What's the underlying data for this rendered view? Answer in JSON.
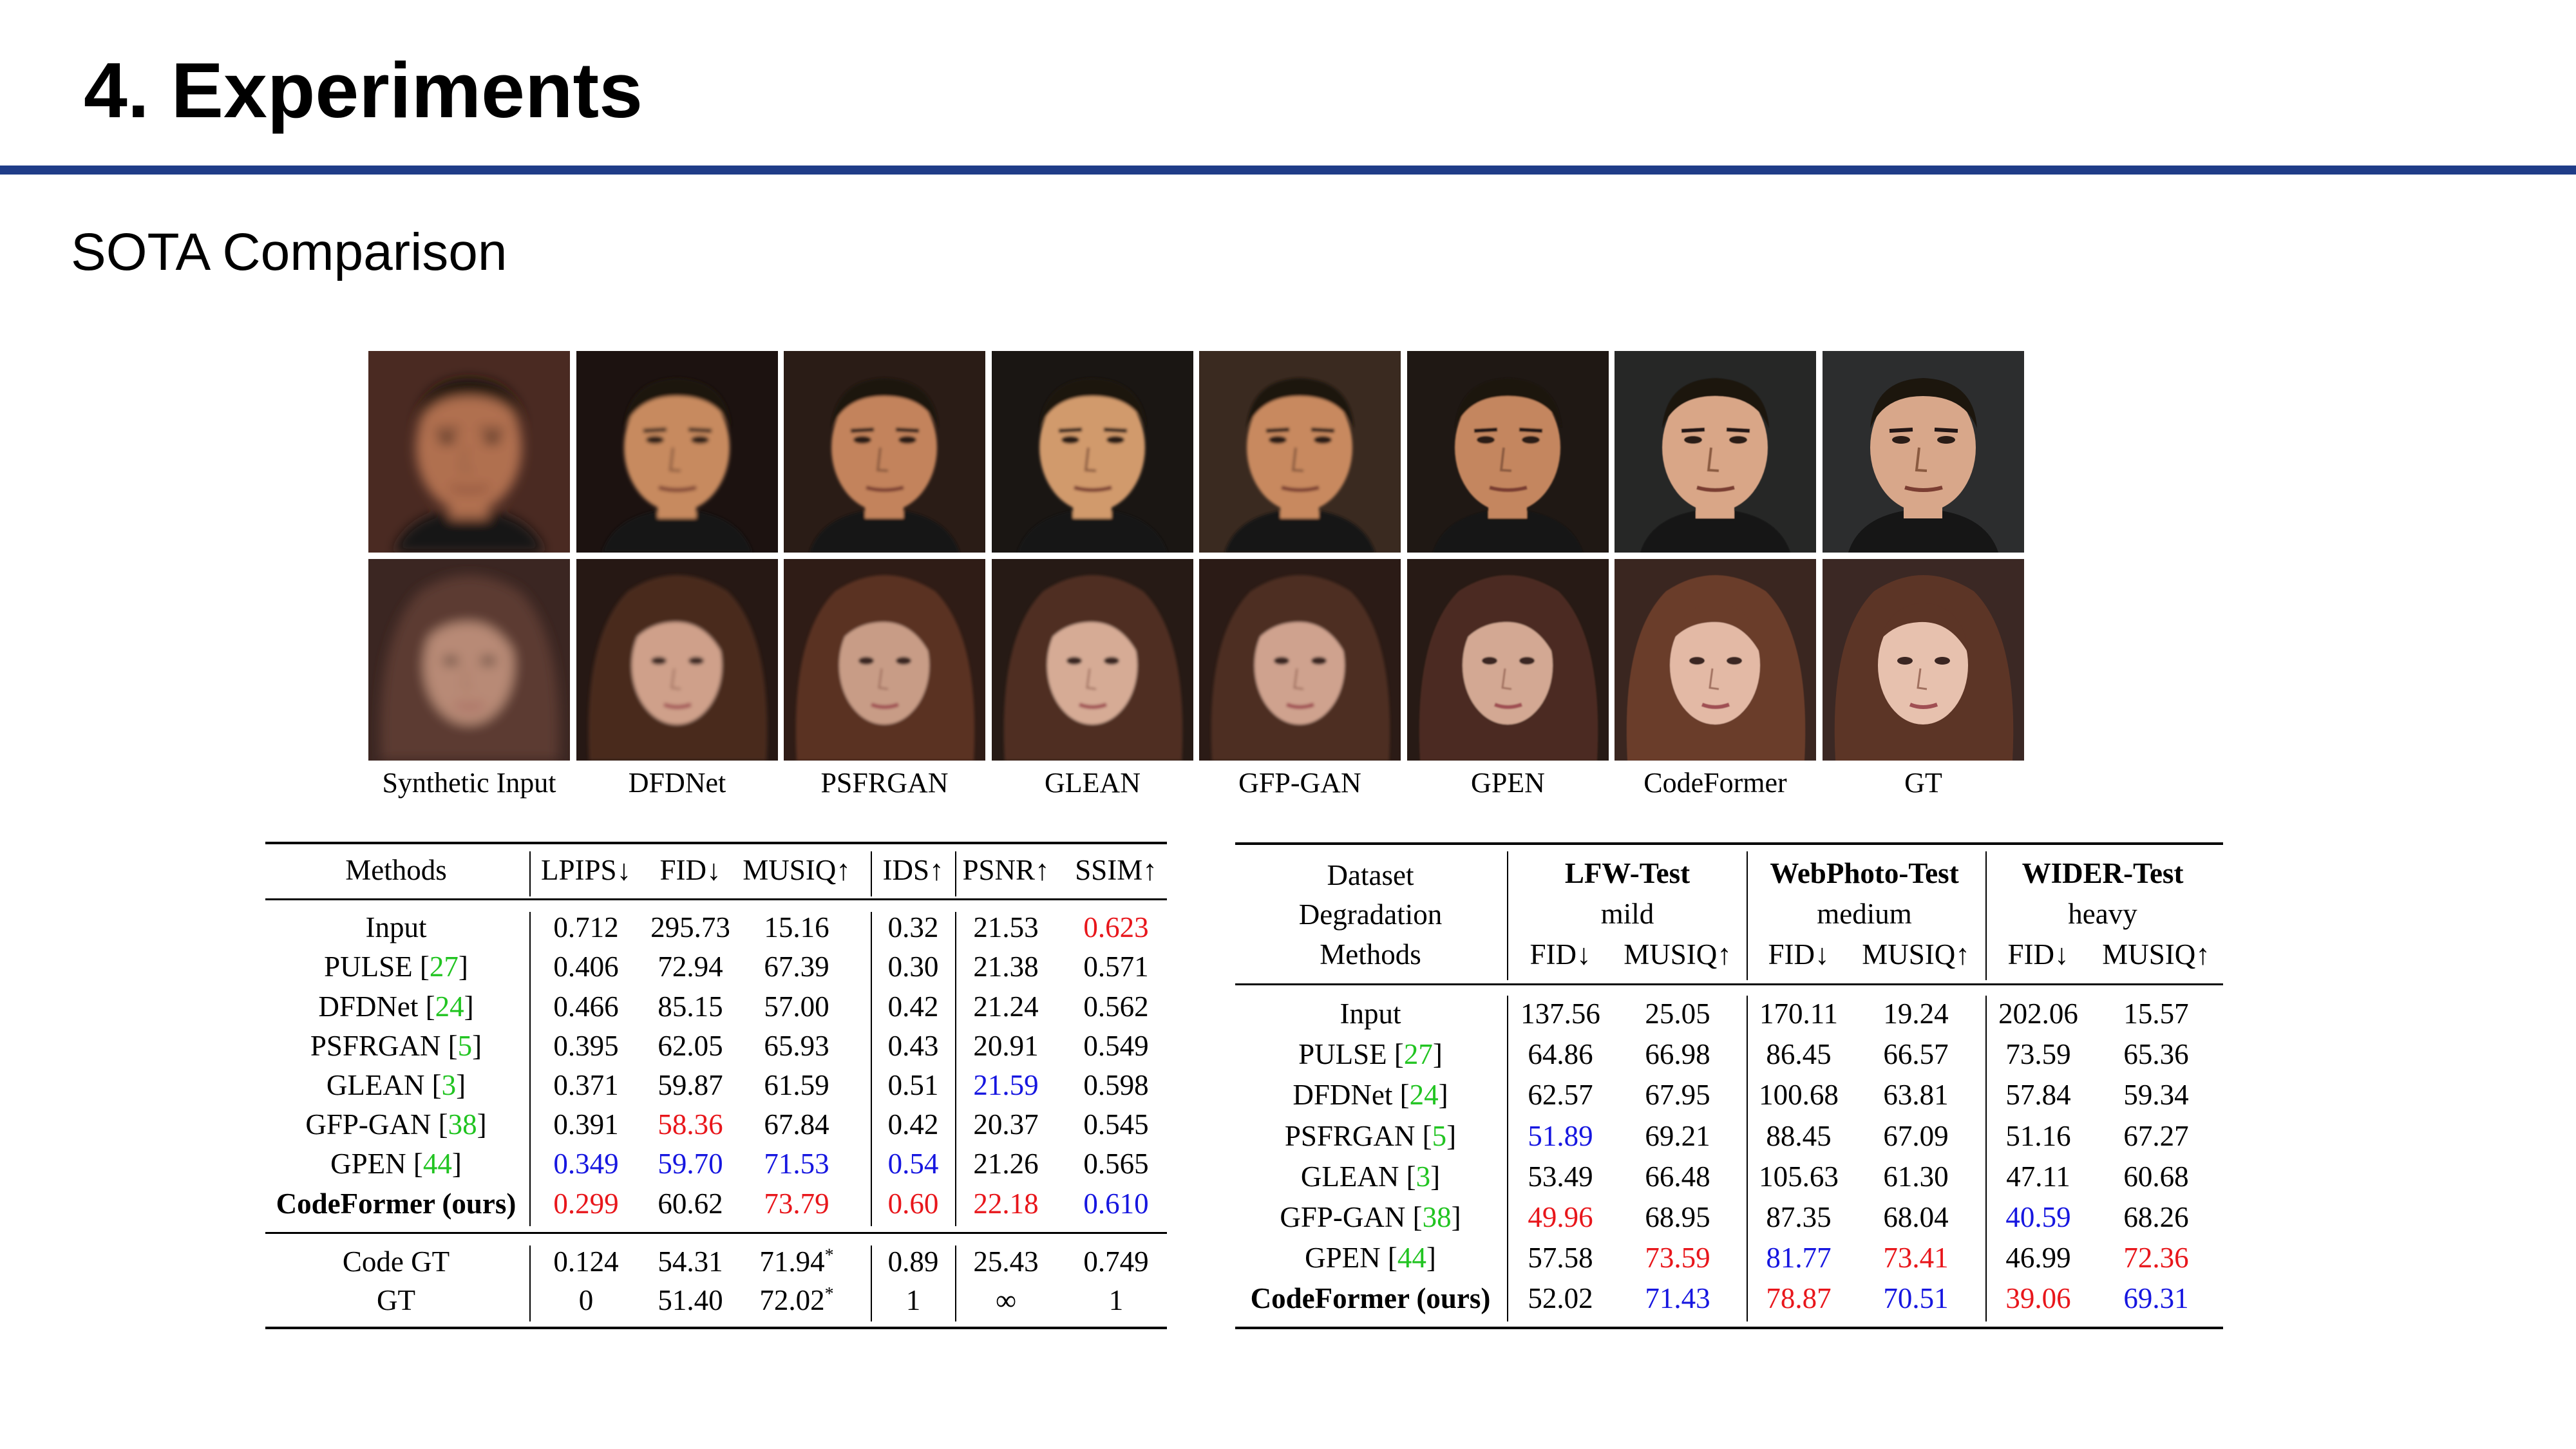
{
  "slide": {
    "title": "4. Experiments",
    "subtitle": "SOTA Comparison"
  },
  "figure": {
    "captions": [
      "Synthetic Input",
      "DFDNet",
      "PSFRGAN",
      "GLEAN",
      "GFP-GAN",
      "GPEN",
      "CodeFormer",
      "GT"
    ],
    "rows": [
      "male-face",
      "female-face"
    ]
  },
  "table1": {
    "headers": [
      "Methods",
      "LPIPS↓",
      "FID↓",
      "MUSIQ↑",
      "IDS↑",
      "PSNR↑",
      "SSIM↑"
    ],
    "rows": [
      {
        "name": "Input",
        "ref": "",
        "bold": false,
        "cells": [
          [
            "0.712",
            ""
          ],
          [
            "295.73",
            ""
          ],
          [
            "15.16",
            ""
          ],
          [
            "0.32",
            ""
          ],
          [
            "21.53",
            ""
          ],
          [
            "0.623",
            "red"
          ]
        ]
      },
      {
        "name": "PULSE ",
        "ref": "27",
        "bold": false,
        "cells": [
          [
            "0.406",
            ""
          ],
          [
            "72.94",
            ""
          ],
          [
            "67.39",
            ""
          ],
          [
            "0.30",
            ""
          ],
          [
            "21.38",
            ""
          ],
          [
            "0.571",
            ""
          ]
        ]
      },
      {
        "name": "DFDNet ",
        "ref": "24",
        "bold": false,
        "cells": [
          [
            "0.466",
            ""
          ],
          [
            "85.15",
            ""
          ],
          [
            "57.00",
            ""
          ],
          [
            "0.42",
            ""
          ],
          [
            "21.24",
            ""
          ],
          [
            "0.562",
            ""
          ]
        ]
      },
      {
        "name": "PSFRGAN ",
        "ref": "5",
        "bold": false,
        "cells": [
          [
            "0.395",
            ""
          ],
          [
            "62.05",
            ""
          ],
          [
            "65.93",
            ""
          ],
          [
            "0.43",
            ""
          ],
          [
            "20.91",
            ""
          ],
          [
            "0.549",
            ""
          ]
        ]
      },
      {
        "name": "GLEAN ",
        "ref": "3",
        "bold": false,
        "cells": [
          [
            "0.371",
            ""
          ],
          [
            "59.87",
            ""
          ],
          [
            "61.59",
            ""
          ],
          [
            "0.51",
            ""
          ],
          [
            "21.59",
            "blue"
          ],
          [
            "0.598",
            ""
          ]
        ]
      },
      {
        "name": "GFP-GAN ",
        "ref": "38",
        "bold": false,
        "cells": [
          [
            "0.391",
            ""
          ],
          [
            "58.36",
            "red"
          ],
          [
            "67.84",
            ""
          ],
          [
            "0.42",
            ""
          ],
          [
            "20.37",
            ""
          ],
          [
            "0.545",
            ""
          ]
        ]
      },
      {
        "name": "GPEN ",
        "ref": "44",
        "bold": false,
        "cells": [
          [
            "0.349",
            "blue"
          ],
          [
            "59.70",
            "blue"
          ],
          [
            "71.53",
            "blue"
          ],
          [
            "0.54",
            "blue"
          ],
          [
            "21.26",
            ""
          ],
          [
            "0.565",
            ""
          ]
        ]
      },
      {
        "name": "CodeFormer (ours)",
        "ref": "",
        "bold": true,
        "cells": [
          [
            "0.299",
            "red"
          ],
          [
            "60.62",
            ""
          ],
          [
            "73.79",
            "red"
          ],
          [
            "0.60",
            "red"
          ],
          [
            "22.18",
            "red"
          ],
          [
            "0.610",
            "blue"
          ]
        ]
      },
      {
        "name": "Code GT",
        "ref": "",
        "bold": false,
        "cells": [
          [
            "0.124",
            ""
          ],
          [
            "54.31",
            ""
          ],
          [
            "71.94*",
            ""
          ],
          [
            "0.89",
            ""
          ],
          [
            "25.43",
            ""
          ],
          [
            "0.749",
            ""
          ]
        ]
      },
      {
        "name": "GT",
        "ref": "",
        "bold": false,
        "cells": [
          [
            "0",
            ""
          ],
          [
            "51.40",
            ""
          ],
          [
            "72.02*",
            ""
          ],
          [
            "1",
            ""
          ],
          [
            "∞",
            ""
          ],
          [
            "1",
            ""
          ]
        ]
      }
    ]
  },
  "table2": {
    "row_labels": [
      "Dataset",
      "Degradation",
      "Methods"
    ],
    "datasets": [
      {
        "name": "LFW-Test",
        "degradation": "mild"
      },
      {
        "name": "WebPhoto-Test",
        "degradation": "medium"
      },
      {
        "name": "WIDER-Test",
        "degradation": "heavy"
      }
    ],
    "metrics": [
      "FID↓",
      "MUSIQ↑"
    ],
    "rows": [
      {
        "name": "Input",
        "ref": "",
        "bold": false,
        "cells": [
          [
            "137.56",
            ""
          ],
          [
            "25.05",
            ""
          ],
          [
            "170.11",
            ""
          ],
          [
            "19.24",
            ""
          ],
          [
            "202.06",
            ""
          ],
          [
            "15.57",
            ""
          ]
        ]
      },
      {
        "name": "PULSE ",
        "ref": "27",
        "bold": false,
        "cells": [
          [
            "64.86",
            ""
          ],
          [
            "66.98",
            ""
          ],
          [
            "86.45",
            ""
          ],
          [
            "66.57",
            ""
          ],
          [
            "73.59",
            ""
          ],
          [
            "65.36",
            ""
          ]
        ]
      },
      {
        "name": "DFDNet ",
        "ref": "24",
        "bold": false,
        "cells": [
          [
            "62.57",
            ""
          ],
          [
            "67.95",
            ""
          ],
          [
            "100.68",
            ""
          ],
          [
            "63.81",
            ""
          ],
          [
            "57.84",
            ""
          ],
          [
            "59.34",
            ""
          ]
        ]
      },
      {
        "name": "PSFRGAN ",
        "ref": "5",
        "bold": false,
        "cells": [
          [
            "51.89",
            "blue"
          ],
          [
            "69.21",
            ""
          ],
          [
            "88.45",
            ""
          ],
          [
            "67.09",
            ""
          ],
          [
            "51.16",
            ""
          ],
          [
            "67.27",
            ""
          ]
        ]
      },
      {
        "name": "GLEAN ",
        "ref": "3",
        "bold": false,
        "cells": [
          [
            "53.49",
            ""
          ],
          [
            "66.48",
            ""
          ],
          [
            "105.63",
            ""
          ],
          [
            "61.30",
            ""
          ],
          [
            "47.11",
            ""
          ],
          [
            "60.68",
            ""
          ]
        ]
      },
      {
        "name": "GFP-GAN ",
        "ref": "38",
        "bold": false,
        "cells": [
          [
            "49.96",
            "red"
          ],
          [
            "68.95",
            ""
          ],
          [
            "87.35",
            ""
          ],
          [
            "68.04",
            ""
          ],
          [
            "40.59",
            "blue"
          ],
          [
            "68.26",
            ""
          ]
        ]
      },
      {
        "name": "GPEN ",
        "ref": "44",
        "bold": false,
        "cells": [
          [
            "57.58",
            ""
          ],
          [
            "73.59",
            "red"
          ],
          [
            "81.77",
            "blue"
          ],
          [
            "73.41",
            "red"
          ],
          [
            "46.99",
            ""
          ],
          [
            "72.36",
            "red"
          ]
        ]
      },
      {
        "name": "CodeFormer (ours)",
        "ref": "",
        "bold": true,
        "cells": [
          [
            "52.02",
            ""
          ],
          [
            "71.43",
            "blue"
          ],
          [
            "78.87",
            "red"
          ],
          [
            "70.51",
            "blue"
          ],
          [
            "39.06",
            "red"
          ],
          [
            "69.31",
            "blue"
          ]
        ]
      }
    ]
  },
  "colors": {
    "accent_rule": "#1f3c88",
    "best": "#e8161b",
    "second": "#1616e0",
    "citation": "#21c421"
  }
}
